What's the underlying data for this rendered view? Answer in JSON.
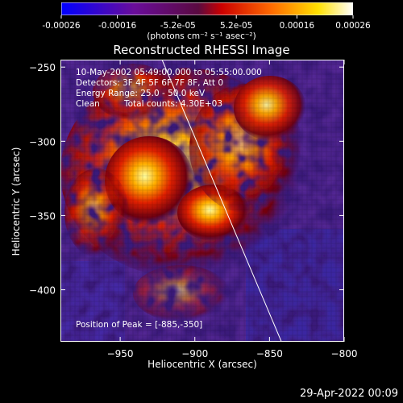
{
  "title": "Reconstructed RHESSI Image",
  "colorbar": {
    "tick_labels": [
      "-0.00026",
      "-0.00016",
      "-5.2e-05",
      "5.2e-05",
      "0.00016",
      "0.00026"
    ],
    "ticks": [
      -0.00026,
      -0.00016,
      -5.2e-05,
      5.2e-05,
      0.00016,
      0.00026
    ],
    "range": [
      -0.00026,
      0.00026
    ],
    "unit_label": "(photons cm⁻² s⁻¹ asec⁻²)",
    "colors": [
      "#0000ff",
      "#800080",
      "#ff0000",
      "#ffa500",
      "#ffff00",
      "#ffffff"
    ]
  },
  "info": {
    "time_range": "10-May-2002 05:49:00.000 to 05:55:00.000",
    "detectors": "Detectors: 3F 4F 5F 6F 7F 8F, Att 0",
    "energy_range": "Energy Range: 25.0 - 50.0 keV",
    "algorithm": "Clean",
    "total_counts": "Total counts: 4.30E+03",
    "peak_position": "Position of Peak = [-885,-350]"
  },
  "footer_timestamp": "29-Apr-2022 00:09",
  "chart_data": {
    "type": "heatmap",
    "title": "Reconstructed RHESSI Image",
    "xlabel": "Heliocentric X (arcsec)",
    "ylabel": "Heliocentric Y (arcsec)",
    "xlim": [
      -990,
      -800
    ],
    "ylim": [
      -435,
      -245
    ],
    "x_ticks": [
      -950,
      -900,
      -850,
      -800
    ],
    "x_tick_labels": [
      "−950",
      "−900",
      "−850",
      "−800"
    ],
    "y_ticks": [
      -250,
      -300,
      -350,
      -400
    ],
    "y_tick_labels": [
      "−250",
      "−300",
      "−350",
      "−400"
    ],
    "peak": [
      -885,
      -350
    ],
    "limb_line": {
      "start": [
        -922,
        -245
      ],
      "end": [
        -842,
        -435
      ]
    },
    "colormap": [
      "#0000ff",
      "#800080",
      "#ff0000",
      "#ffa500",
      "#ffff00",
      "#ffffff"
    ]
  }
}
